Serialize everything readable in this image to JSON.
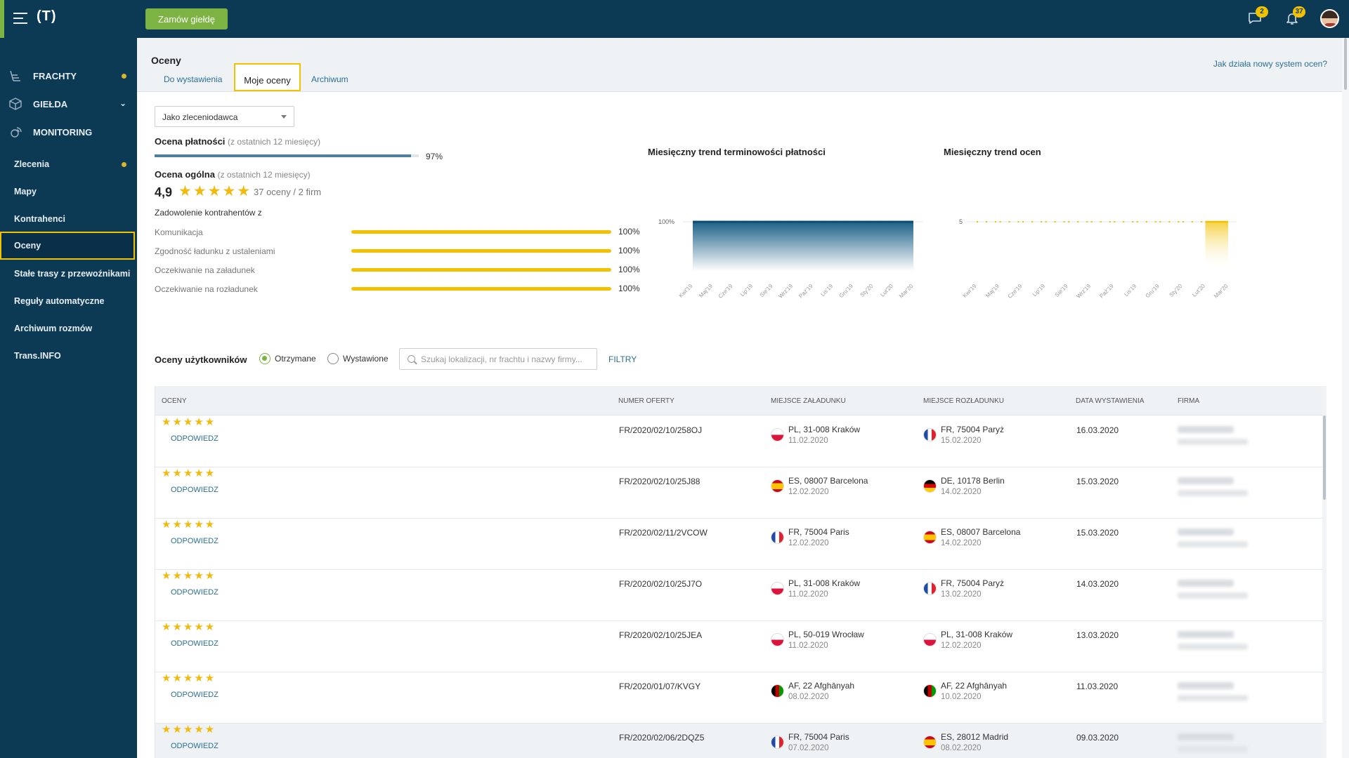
{
  "topbar": {
    "logo": "(T)",
    "order_button": "Zamów giełdę",
    "messages_badge": "2",
    "notifications_badge": "37"
  },
  "colors": {
    "navy": "#0c3a55",
    "accent_green": "#7cb342",
    "highlight_yellow": "#f2c200",
    "star": "#f2b90f",
    "link": "#2c6f95"
  },
  "sidebar": {
    "main": [
      {
        "label": "FRACHTY",
        "icon": "freight-icon",
        "indicator": "dot"
      },
      {
        "label": "GIEŁDA",
        "icon": "cube-icon",
        "indicator": "chevron"
      },
      {
        "label": "MONITORING",
        "icon": "satellite-icon",
        "indicator": ""
      }
    ],
    "items": [
      {
        "label": "Zlecenia",
        "dot": true
      },
      {
        "label": "Mapy"
      },
      {
        "label": "Kontrahenci"
      },
      {
        "label": "Oceny",
        "active": true
      },
      {
        "label": "Stałe trasy z przewoźnikami"
      },
      {
        "label": "Reguły automatyczne"
      },
      {
        "label": "Archiwum rozmów"
      },
      {
        "label": "Trans.INFO"
      }
    ]
  },
  "header": {
    "title": "Oceny",
    "tabs": [
      "Do wystawienia",
      "Moje oceny",
      "Archiwum"
    ],
    "active_tab": "Moje oceny",
    "help_link": "Jak działa nowy system ocen?"
  },
  "summary": {
    "role_select": "Jako zleceniodawca",
    "payment_label": "Ocena płatności",
    "payment_period": "(z ostatnich 12 miesięcy)",
    "payment_value": "97%",
    "payment_fraction": 0.97,
    "overall_label": "Ocena ogólna",
    "overall_period": "(z ostatnich 12 miesięcy)",
    "overall_value": "4,9",
    "overall_stars": 5,
    "overall_meta": "37 oceny / 2 firm",
    "satisfaction_title": "Zadowolenie kontrahentów z",
    "criteria": [
      {
        "name": "Komunikacja",
        "value": "100%",
        "fraction": 1
      },
      {
        "name": "Zgodność ładunku z ustaleniami",
        "value": "100%",
        "fraction": 1
      },
      {
        "name": "Oczekiwanie na załadunek",
        "value": "100%",
        "fraction": 1
      },
      {
        "name": "Oczekiwanie na rozładunek",
        "value": "100%",
        "fraction": 1
      }
    ]
  },
  "chart_data": [
    {
      "type": "area",
      "title": "Miesięczny trend terminowości płatności",
      "categories": [
        "Kwi'19",
        "Maj'19",
        "Cze'19",
        "Lip'19",
        "Sie'19",
        "Wrz'19",
        "Paź'19",
        "Lis'19",
        "Gru'19",
        "Sty'20",
        "Lut'20",
        "Mar'20"
      ],
      "values": [
        100,
        100,
        100,
        100,
        100,
        100,
        100,
        100,
        100,
        100,
        100,
        100
      ],
      "y_tick": "100%",
      "ylim": [
        0,
        100
      ],
      "grid": false
    },
    {
      "type": "line",
      "title": "Miesięczny trend ocen",
      "categories": [
        "Kwi'19",
        "Maj'19",
        "Cze'19",
        "Lip'19",
        "Sie'19",
        "Wrz'19",
        "Paź'19",
        "Lis'19",
        "Gru'19",
        "Sty'20",
        "Lut'20",
        "Mar'20"
      ],
      "values": [
        5,
        5,
        5,
        5,
        5,
        5,
        5,
        5,
        5,
        5,
        5,
        5
      ],
      "dotted_until_index": 10,
      "y_tick": "5",
      "ylim": [
        0,
        5
      ],
      "grid": false
    }
  ],
  "ratings": {
    "title": "Oceny użytkowników",
    "radio_received": "Otrzymane",
    "radio_issued": "Wystawione",
    "selected": "Otrzymane",
    "search_placeholder": "Szukaj lokalizacji, nr frachtu i nazwy firmy...",
    "filters_label": "FILTRY",
    "columns": [
      "OCENY",
      "NUMER OFERTY",
      "MIEJSCE ZAŁADUNKU",
      "MIEJSCE ROZŁADUNKU",
      "DATA WYSTAWIENIA",
      "FIRMA"
    ],
    "reply_label": "ODPOWIEDZ",
    "rows": [
      {
        "stars": 5,
        "offer": "FR/2020/02/10/258OJ",
        "load_flag": "pl",
        "load_place": "PL, 31-008 Kraków",
        "load_date": "11.02.2020",
        "unload_flag": "fr",
        "unload_place": "FR, 75004 Paryż",
        "unload_date": "15.02.2020",
        "published": "16.03.2020"
      },
      {
        "stars": 5,
        "offer": "FR/2020/02/10/25J88",
        "load_flag": "es",
        "load_place": "ES, 08007 Barcelona",
        "load_date": "12.02.2020",
        "unload_flag": "de",
        "unload_place": "DE, 10178 Berlin",
        "unload_date": "14.02.2020",
        "published": "15.03.2020"
      },
      {
        "stars": 5,
        "offer": "FR/2020/02/11/2VCOW",
        "load_flag": "fr",
        "load_place": "FR, 75004 Paris",
        "load_date": "12.02.2020",
        "unload_flag": "es",
        "unload_place": "ES, 08007 Barcelona",
        "unload_date": "14.02.2020",
        "published": "15.03.2020"
      },
      {
        "stars": 5,
        "offer": "FR/2020/02/10/25J7O",
        "load_flag": "pl",
        "load_place": "PL, 31-008 Kraków",
        "load_date": "11.02.2020",
        "unload_flag": "fr",
        "unload_place": "FR, 75004 Paryż",
        "unload_date": "13.02.2020",
        "published": "14.03.2020"
      },
      {
        "stars": 5,
        "offer": "FR/2020/02/10/25JEA",
        "load_flag": "pl",
        "load_place": "PL, 50-019 Wrocław",
        "load_date": "11.02.2020",
        "unload_flag": "pl",
        "unload_place": "PL, 31-008 Kraków",
        "unload_date": "12.02.2020",
        "published": "13.03.2020"
      },
      {
        "stars": 5,
        "offer": "FR/2020/01/07/KVGY",
        "load_flag": "af",
        "load_place": "AF, 22 Afghānyah",
        "load_date": "08.02.2020",
        "unload_flag": "af",
        "unload_place": "AF, 22 Afghānyah",
        "unload_date": "10.02.2020",
        "published": "11.03.2020"
      },
      {
        "stars": 5,
        "offer": "FR/2020/02/06/2DQZ5",
        "load_flag": "fr",
        "load_place": "FR, 75004 Paris",
        "load_date": "07.02.2020",
        "unload_flag": "es",
        "unload_place": "ES, 28012 Madrid",
        "unload_date": "08.02.2020",
        "published": "09.03.2020",
        "highlighted": true
      }
    ]
  }
}
